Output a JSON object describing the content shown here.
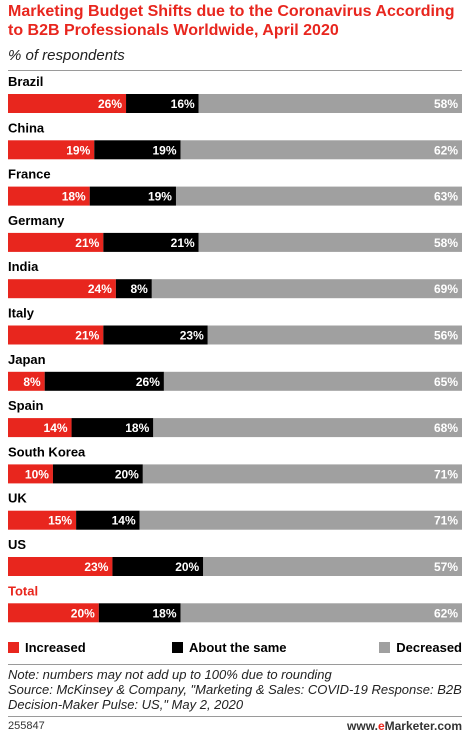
{
  "header": {
    "title": "Marketing Budget Shifts due to the Coronavirus According to B2B Professionals Worldwide, April 2020",
    "subtitle": "% of respondents"
  },
  "colors": {
    "increased": "#e8261e",
    "same": "#000000",
    "decreased": "#a0a0a0",
    "title": "#e8261e"
  },
  "legend": {
    "increased": "Increased",
    "same": "About the same",
    "decreased": "Decreased"
  },
  "footer": {
    "note": "Note: numbers may not add up to 100% due to rounding",
    "source": "Source: McKinsey & Company, \"Marketing & Sales: COVID-19 Response: B2B Decision-Maker Pulse: US,\" May 2, 2020",
    "chart_id": "255847",
    "brand_prefix": "www.",
    "brand_e": "e",
    "brand_suffix": "Marketer.com"
  },
  "chart_data": {
    "type": "bar",
    "stacked": true,
    "orientation": "horizontal",
    "categories": [
      "Brazil",
      "China",
      "France",
      "Germany",
      "India",
      "Italy",
      "Japan",
      "Spain",
      "South Korea",
      "UK",
      "US",
      "Total"
    ],
    "series": [
      {
        "name": "Increased",
        "values": [
          26,
          19,
          18,
          21,
          24,
          21,
          8,
          14,
          10,
          15,
          23,
          20
        ]
      },
      {
        "name": "About the same",
        "values": [
          16,
          19,
          19,
          21,
          8,
          23,
          26,
          18,
          20,
          14,
          20,
          18
        ]
      },
      {
        "name": "Decreased",
        "values": [
          58,
          62,
          63,
          58,
          69,
          56,
          65,
          68,
          71,
          71,
          57,
          62
        ]
      }
    ],
    "value_suffix": "%",
    "highlight_category": "Total",
    "legend_position": "bottom"
  }
}
